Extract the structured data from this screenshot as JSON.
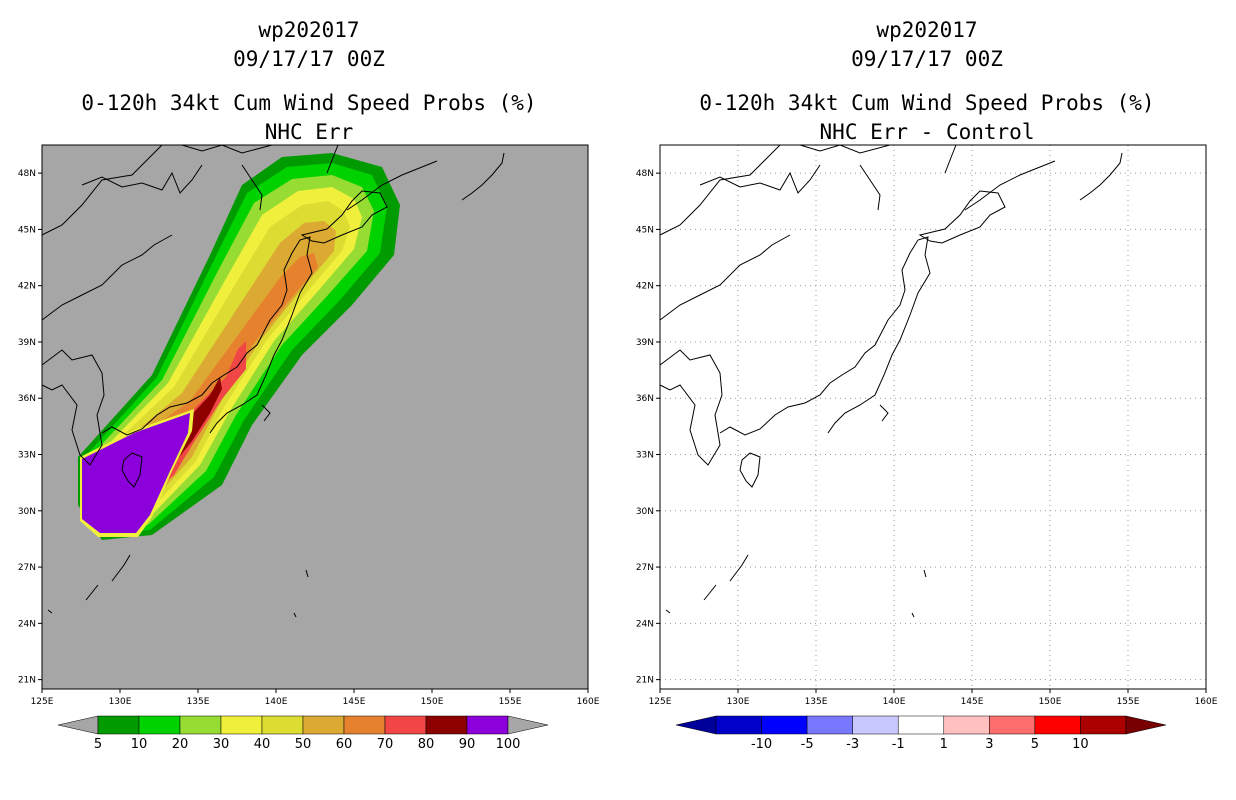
{
  "left_panel": {
    "storm_id": "wp202017",
    "datetime": "09/17/17 00Z",
    "product": "0-120h 34kt Cum Wind Speed Probs (%)",
    "subtitle": "NHC Err"
  },
  "right_panel": {
    "storm_id": "wp202017",
    "datetime": "09/17/17 00Z",
    "product": "0-120h 34kt Cum Wind Speed Probs (%)",
    "subtitle": "NHC Err - Control"
  },
  "map": {
    "lon_range": [
      125,
      160
    ],
    "lat_range": [
      20.5,
      49.5
    ],
    "lon_ticks": [
      "125E",
      "130E",
      "135E",
      "140E",
      "145E",
      "150E",
      "155E",
      "160E"
    ],
    "lat_ticks": [
      "21N",
      "24N",
      "27N",
      "30N",
      "33N",
      "36N",
      "39N",
      "42N",
      "45N",
      "48N"
    ],
    "ocean_color_left": "#a6a6a6",
    "ocean_color_right": "#ffffff"
  },
  "left_colorbar": {
    "labels": [
      "5",
      "10",
      "20",
      "30",
      "40",
      "50",
      "60",
      "70",
      "80",
      "90",
      "100"
    ],
    "colors": [
      "#009b00",
      "#00d200",
      "#96dc32",
      "#f0f03c",
      "#dcdc32",
      "#dcaa32",
      "#e6822d",
      "#f04646",
      "#8c0000",
      "#8c00dc"
    ],
    "end_color": "#a6a6a6"
  },
  "right_colorbar": {
    "labels": [
      "-10",
      "-5",
      "-3",
      "-1",
      "1",
      "3",
      "5",
      "10"
    ],
    "colors": [
      "#0000c8",
      "#0000ff",
      "#7878ff",
      "#c8c8ff",
      "#ffffff",
      "#ffc0c0",
      "#ff6e6e",
      "#ff0000",
      "#aa0000"
    ],
    "end_left": "#00009b",
    "end_right": "#780000"
  }
}
